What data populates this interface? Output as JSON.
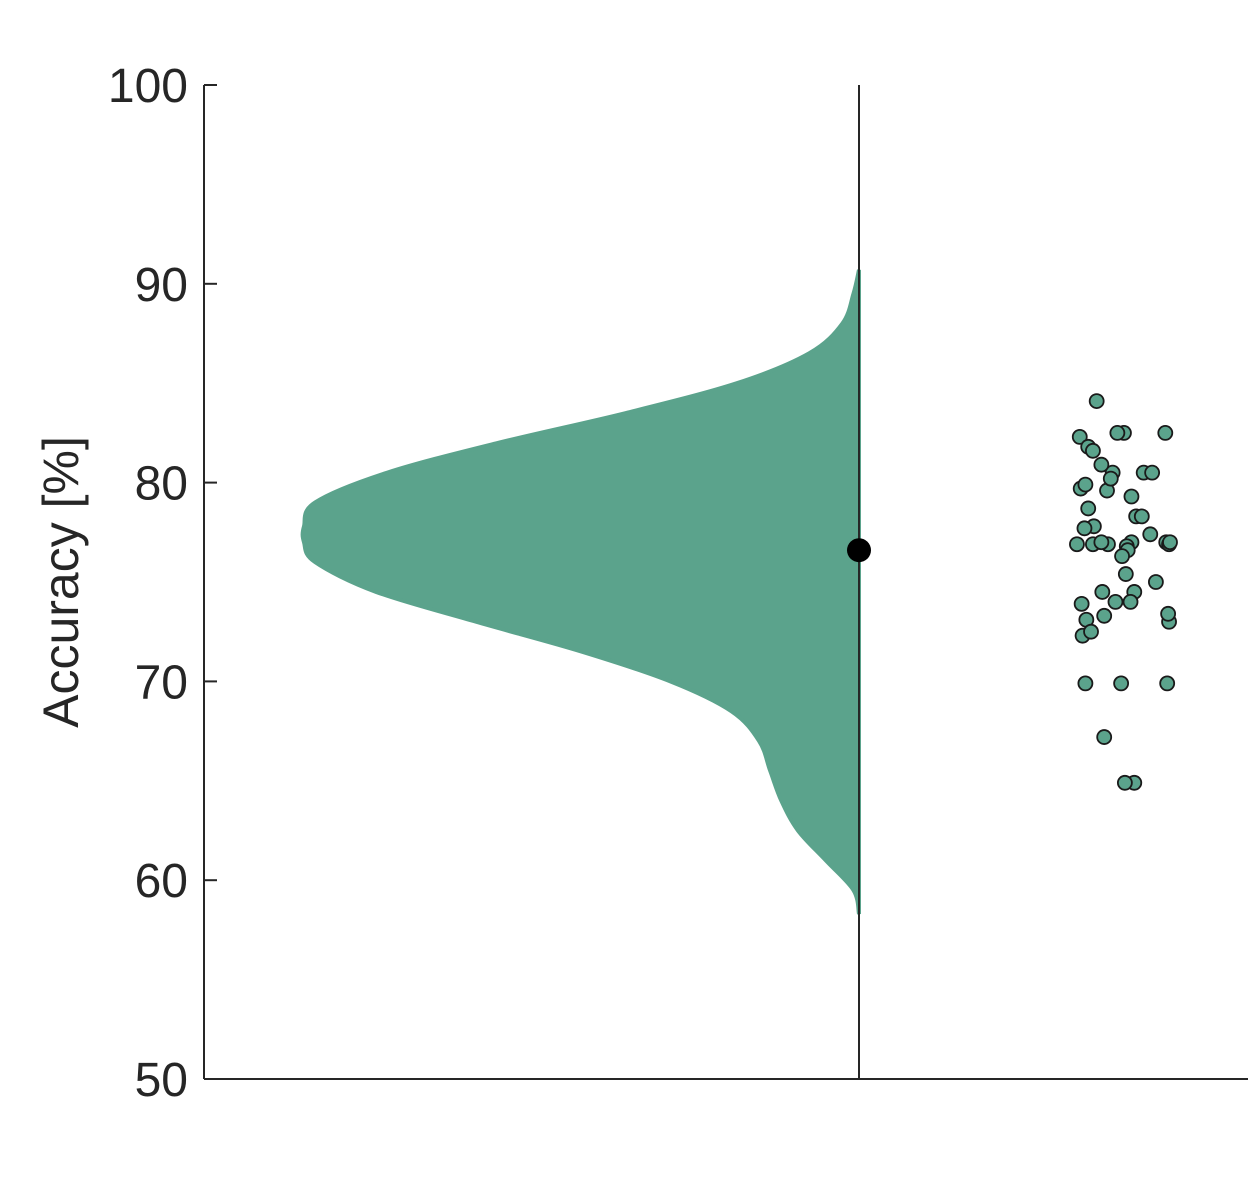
{
  "chart_data": {
    "type": "scatter",
    "subtype": "raincloud",
    "ylabel": "Accuracy [%]",
    "xlabel": "",
    "ylim": [
      50,
      100
    ],
    "yticks": [
      50,
      60,
      70,
      80,
      90,
      100
    ],
    "grid": false,
    "colors": {
      "cloud": "#5ba38c",
      "points": "#5ba38c",
      "point_edge": "#1a1a1a",
      "mean_marker": "#000000",
      "axis": "#262626"
    },
    "mean": 76.6,
    "density": {
      "y": [
        58.3,
        59.5,
        61,
        62.5,
        64,
        65.5,
        67,
        68.5,
        70,
        71.5,
        73,
        74.5,
        76,
        77,
        77.8,
        79,
        80.5,
        82,
        83.5,
        85,
        86.5,
        88,
        89.5,
        90.7
      ],
      "density": [
        0.0,
        0.01,
        0.06,
        0.11,
        0.14,
        0.16,
        0.18,
        0.23,
        0.34,
        0.5,
        0.69,
        0.87,
        0.98,
        1.0,
        1.0,
        0.98,
        0.85,
        0.65,
        0.42,
        0.22,
        0.09,
        0.03,
        0.01,
        0.0
      ]
    },
    "points": {
      "jitter": [
        0.04,
        0.22,
        0.13,
        0.51,
        0.05,
        0.44,
        0.18,
        0.39,
        0.1,
        0.27,
        0.72,
        0.95,
        0.81,
        0.59,
        0.33,
        0.37,
        0.13,
        0.19,
        0.64,
        0.7,
        0.79,
        0.01,
        0.34,
        0.09,
        0.18,
        0.27,
        0.59,
        0.54,
        0.96,
        0.99,
        0.55,
        0.49,
        0.53,
        0.28,
        0.62,
        0.85,
        0.58,
        0.42,
        0.3,
        0.11,
        0.99,
        0.98,
        0.07,
        0.16,
        0.48,
        0.97,
        0.1,
        0.3,
        0.62,
        0.52,
        0.06,
        1.0
      ],
      "values": [
        82.3,
        84.1,
        81.8,
        82.5,
        79.7,
        82.5,
        81.6,
        80.5,
        79.9,
        80.9,
        80.5,
        82.5,
        80.5,
        79.3,
        79.6,
        80.2,
        78.7,
        77.8,
        78.3,
        78.3,
        77.4,
        76.9,
        76.9,
        77.7,
        76.9,
        77.0,
        77.0,
        76.8,
        77.0,
        76.9,
        76.6,
        76.3,
        75.4,
        74.5,
        74.5,
        75.0,
        74.0,
        74.0,
        73.3,
        73.1,
        73.0,
        73.4,
        72.3,
        72.5,
        69.9,
        69.9,
        69.9,
        67.2,
        64.9,
        64.9,
        73.9,
        77.0
      ]
    }
  }
}
